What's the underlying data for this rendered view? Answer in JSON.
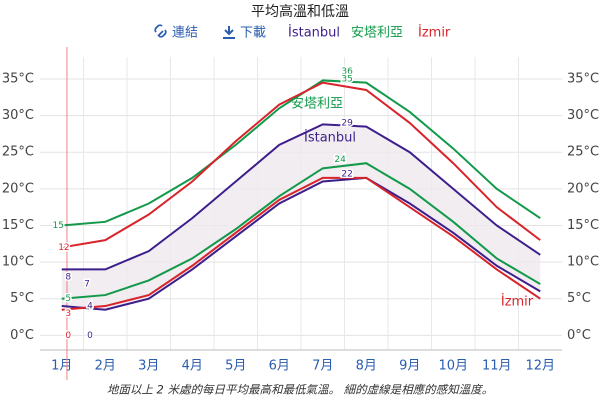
{
  "chart_data": {
    "type": "line",
    "title": "平均高溫和低溫",
    "toolbar": [
      "連結",
      "下載"
    ],
    "caption": "地面以上 2 米處的每日平均最高和最低氣溫。 細的虛線是相應的感知溫度。",
    "categories": [
      "1月",
      "2月",
      "3月",
      "4月",
      "5月",
      "6月",
      "7月",
      "8月",
      "9月",
      "10月",
      "11月",
      "12月"
    ],
    "series": [
      {
        "name": "İstanbul",
        "color": "#3d1e8c",
        "high": [
          9,
          9,
          11.5,
          16,
          21,
          26,
          28.8,
          28.5,
          25,
          20,
          15,
          11
        ],
        "low": [
          4,
          3.5,
          5,
          9,
          13.5,
          18,
          21,
          21.5,
          18,
          14,
          9.5,
          6
        ]
      },
      {
        "name": "安塔利亞",
        "color": "#12994a",
        "high": [
          15,
          15.5,
          18,
          21.5,
          26,
          31,
          34.8,
          34.5,
          30.5,
          25.5,
          20,
          16
        ],
        "low": [
          5,
          5.5,
          7.5,
          10.5,
          14.5,
          19,
          22.8,
          23.5,
          20,
          15.5,
          10.5,
          7
        ]
      },
      {
        "name": "İzmir",
        "color": "#d9232a",
        "high": [
          12,
          13,
          16.5,
          21,
          26.5,
          31.5,
          34.5,
          33.5,
          29,
          23.5,
          17.5,
          13
        ],
        "low": [
          3.5,
          4,
          5.5,
          9.5,
          14,
          18.5,
          21.5,
          21.5,
          17.5,
          13.5,
          9,
          5
        ]
      }
    ],
    "annotations": [
      {
        "value": 36,
        "x": 7.06,
        "color": "#12994a"
      },
      {
        "value": 35,
        "x": 7.06,
        "color": "#12994a"
      },
      {
        "value": 29,
        "x": 7.06,
        "color": "#3d1e8c"
      },
      {
        "value": 24,
        "x": 6.9,
        "color": "#12994a"
      },
      {
        "value": 22,
        "x": 7.06,
        "color": "#3d1e8c"
      },
      {
        "value": 15,
        "x": 0.42,
        "color": "#12994a"
      },
      {
        "value": 12,
        "x": 0.55,
        "color": "#d9232a"
      },
      {
        "value": 8,
        "x": 0.65,
        "color": "#3d1e8c"
      },
      {
        "value": 7,
        "x": 1.08,
        "color": "#3d1e8c"
      },
      {
        "value": 5,
        "x": 0.65,
        "color": "#12994a"
      },
      {
        "value": 4,
        "x": 1.15,
        "color": "#3d1e8c"
      },
      {
        "value": 3,
        "x": 0.65,
        "color": "#d9232a"
      },
      {
        "value": 0,
        "x": 0.65,
        "color": "#d9232a"
      },
      {
        "value": 0,
        "x": 1.15,
        "color": "#3d1e8c"
      }
    ],
    "ylim": [
      -2,
      38
    ],
    "yticks": [
      {
        "value": 0,
        "label": "0°C"
      },
      {
        "value": 5,
        "label": "5°C"
      },
      {
        "value": 10,
        "label": "10°C"
      },
      {
        "value": 15,
        "label": "15°C"
      },
      {
        "value": 20,
        "label": "20°C"
      },
      {
        "value": 25,
        "label": "25°C"
      },
      {
        "value": 30,
        "label": "30°C"
      },
      {
        "value": 35,
        "label": "35°C"
      }
    ],
    "grid": true
  }
}
